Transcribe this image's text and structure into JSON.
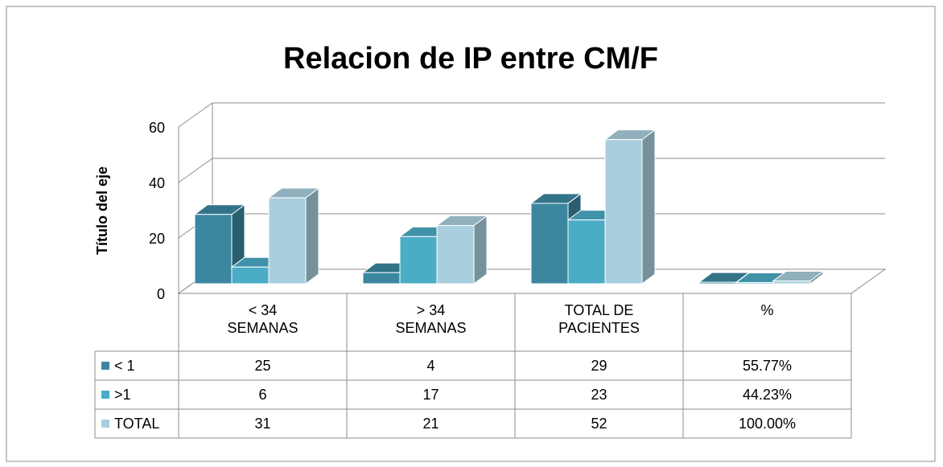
{
  "chart_data": {
    "type": "bar3d",
    "title": "Relacion de IP entre CM/F",
    "y_axis_label": "Título del eje",
    "categories": [
      "< 34 SEMANAS",
      "> 34 SEMANAS",
      "TOTAL DE PACIENTES",
      "%"
    ],
    "series": [
      {
        "name": "< 1",
        "color": "#3b87a0",
        "values": [
          25,
          4,
          29,
          0.5577
        ],
        "value_labels": [
          null,
          null,
          null,
          "55.77%"
        ]
      },
      {
        "name": ">1",
        "color": "#4bacc6",
        "values": [
          6,
          17,
          23,
          0.4423
        ],
        "value_labels": [
          null,
          null,
          null,
          "44.23%"
        ]
      },
      {
        "name": "TOTAL",
        "color": "#a9cfde",
        "values": [
          31,
          21,
          52,
          1.0
        ],
        "value_labels": [
          null,
          null,
          null,
          "100.00%"
        ]
      }
    ],
    "ylim": [
      0,
      60
    ],
    "yticks": [
      0,
      20,
      40,
      60
    ],
    "grid": true,
    "data_table": true
  }
}
